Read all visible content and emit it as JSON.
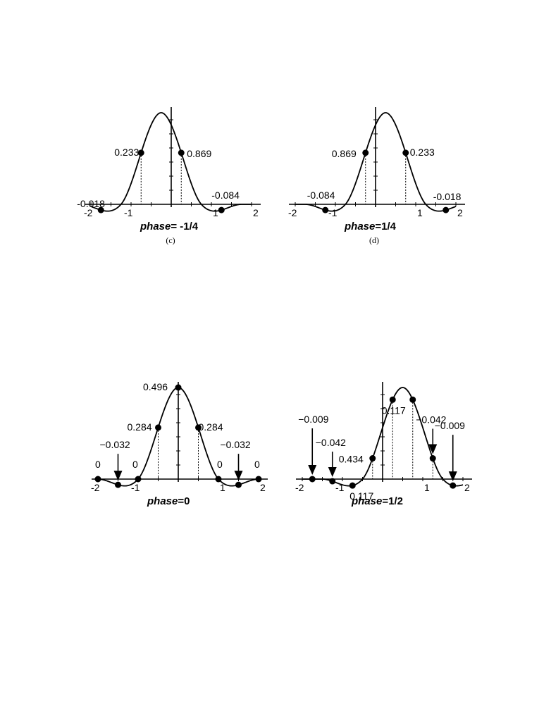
{
  "plots": [
    {
      "id": "c",
      "caption": "(c)",
      "phase_word": "phase",
      "phase_value": "= -1/4",
      "phase": -0.25,
      "ticks": [
        "-2",
        "-1",
        "1",
        "2"
      ],
      "samples": [
        {
          "x": -1.75,
          "label": "-0.018"
        },
        {
          "x": -0.75,
          "label": "0.233"
        },
        {
          "x": 0.25,
          "label": "0.869"
        },
        {
          "x": 1.25,
          "label": "-0.084"
        }
      ]
    },
    {
      "id": "d",
      "caption": "(d)",
      "phase_word": "phase",
      "phase_value": "=1/4",
      "phase": 0.25,
      "ticks": [
        "-2",
        "-1",
        "1",
        "2"
      ],
      "samples": [
        {
          "x": -1.25,
          "label": "-0.084"
        },
        {
          "x": -0.25,
          "label": "0.869"
        },
        {
          "x": 0.75,
          "label": "0.233"
        },
        {
          "x": 1.75,
          "label": "-0.018"
        }
      ]
    },
    {
      "id": "zero",
      "caption": "",
      "phase_word": "phase",
      "phase_value": "=0",
      "phase": 0,
      "ticks": [
        "-2",
        "-1",
        "1",
        "2"
      ],
      "samples": [
        {
          "x": -2.0,
          "label": "0"
        },
        {
          "x": -1.5,
          "label": "−0.032",
          "arrow": true
        },
        {
          "x": -1.0,
          "label": "0"
        },
        {
          "x": -0.5,
          "label": "0.284"
        },
        {
          "x": 0.0,
          "label": "0.496"
        },
        {
          "x": 0.5,
          "label": "0.284"
        },
        {
          "x": 1.0,
          "label": "0"
        },
        {
          "x": 1.5,
          "label": "−0.032",
          "arrow": true
        },
        {
          "x": 2.0,
          "label": "0"
        }
      ]
    },
    {
      "id": "half",
      "caption": "",
      "phase_word": "phase",
      "phase_value": "=1/2",
      "phase": 0.5,
      "ticks": [
        "-2",
        "-1",
        "1",
        "2"
      ],
      "samples": [
        {
          "x": -1.75,
          "label": "−0.009",
          "arrow": true
        },
        {
          "x": -1.25,
          "label": "−0.042",
          "arrow": true
        },
        {
          "x": -0.75,
          "label": "0.117"
        },
        {
          "x": -0.25,
          "label": "0.434"
        },
        {
          "x": 0.25,
          "label": ""
        },
        {
          "x": 0.75,
          "label": "0.117"
        },
        {
          "x": 1.25,
          "label": "−0.042",
          "arrow": true
        },
        {
          "x": 1.75,
          "label": "−0.009",
          "arrow": true
        }
      ]
    }
  ]
}
